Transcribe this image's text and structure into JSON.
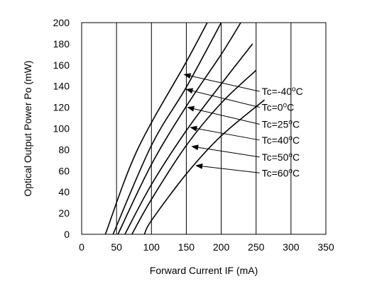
{
  "chart_data": {
    "type": "line",
    "xlabel": "Forward Current IF  (mA)",
    "ylabel": "Optical Output Power Po  (mW)",
    "xlim": [
      0,
      350
    ],
    "ylim": [
      0,
      200
    ],
    "xticks": [
      0,
      50,
      100,
      150,
      200,
      250,
      300,
      350
    ],
    "yticks": [
      0,
      20,
      40,
      60,
      80,
      100,
      120,
      140,
      160,
      180,
      200
    ],
    "grid": "vertical",
    "series": [
      {
        "name": "Tc=-40oC",
        "label_main": "Tc=-40",
        "label_sup": "o",
        "label_unit": "C",
        "points": [
          [
            34,
            0
          ],
          [
            80,
            80
          ],
          [
            150,
            163
          ],
          [
            180,
            200
          ]
        ],
        "arrow": {
          "from": [
            255,
            135
          ],
          "to": [
            147,
            151
          ]
        }
      },
      {
        "name": "Tc=0oC",
        "label_main": "Tc=0",
        "label_sup": "o",
        "label_unit": "C",
        "points": [
          [
            45,
            0
          ],
          [
            100,
            84
          ],
          [
            150,
            139
          ],
          [
            200,
            200
          ]
        ],
        "arrow": {
          "from": [
            255,
            120
          ],
          "to": [
            150,
            137
          ]
        }
      },
      {
        "name": "Tc=25oC",
        "label_main": "Tc=25",
        "label_sup": "o",
        "label_unit": "C",
        "points": [
          [
            52,
            0
          ],
          [
            100,
            66
          ],
          [
            150,
            121
          ],
          [
            200,
            170
          ],
          [
            228,
            200
          ]
        ],
        "arrow": {
          "from": [
            255,
            104
          ],
          "to": [
            152,
            120
          ]
        }
      },
      {
        "name": "Tc=40oC",
        "label_main": "Tc=40",
        "label_sup": "o",
        "label_unit": "C",
        "points": [
          [
            62,
            0
          ],
          [
            100,
            47
          ],
          [
            150,
            98
          ],
          [
            200,
            142
          ],
          [
            245,
            180
          ]
        ],
        "arrow": {
          "from": [
            255,
            89
          ],
          "to": [
            156,
            101
          ]
        }
      },
      {
        "name": "Tc=50oC",
        "label_main": "Tc=50",
        "label_sup": "o",
        "label_unit": "C",
        "points": [
          [
            72,
            0
          ],
          [
            100,
            33
          ],
          [
            150,
            84
          ],
          [
            200,
            124
          ],
          [
            250,
            155
          ]
        ],
        "arrow": {
          "from": [
            255,
            73
          ],
          "to": [
            158,
            83
          ]
        }
      },
      {
        "name": "Tc=60oC",
        "label_main": "Tc=60",
        "label_sup": "o",
        "label_unit": "C",
        "points": [
          [
            90,
            0
          ],
          [
            100,
            13
          ],
          [
            150,
            57
          ],
          [
            200,
            93
          ],
          [
            262,
            127
          ]
        ],
        "arrow": {
          "from": [
            255,
            58
          ],
          "to": [
            164,
            65
          ]
        }
      }
    ]
  }
}
